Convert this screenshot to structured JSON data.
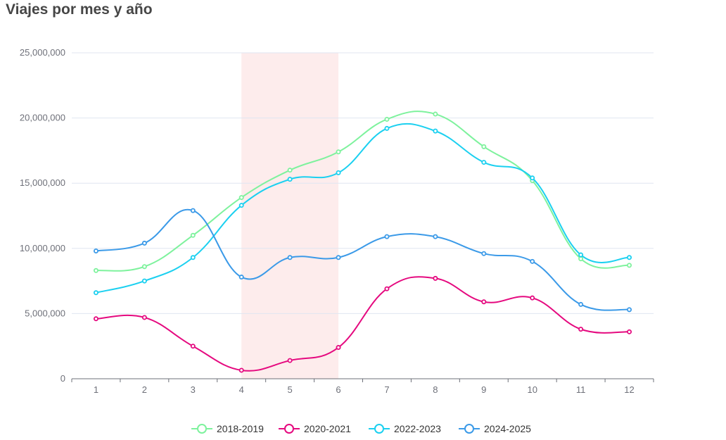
{
  "chart_data": {
    "type": "line",
    "title": "Viajes por mes y año",
    "xlabel": "",
    "ylabel": "",
    "categories": [
      "1",
      "2",
      "3",
      "4",
      "5",
      "6",
      "7",
      "8",
      "9",
      "10",
      "11",
      "12"
    ],
    "ylim": [
      0,
      25000000
    ],
    "yticks": [
      0,
      5000000,
      10000000,
      15000000,
      20000000,
      25000000
    ],
    "ytick_labels": [
      "0",
      "5,000,000",
      "10,000,000",
      "15,000,000",
      "20,000,000",
      "25,000,000"
    ],
    "grid": true,
    "legend_position": "bottom-center",
    "highlight_band": {
      "from": "4",
      "to": "6",
      "color": "#fdecec"
    },
    "series": [
      {
        "name": "2018-2019",
        "color": "#7ef29d",
        "values": [
          8300000,
          8600000,
          11000000,
          13900000,
          16000000,
          17400000,
          19900000,
          20300000,
          17800000,
          15200000,
          9200000,
          8700000
        ]
      },
      {
        "name": "2020-2021",
        "color": "#e5097f",
        "values": [
          4600000,
          4700000,
          2500000,
          650000,
          1400000,
          2400000,
          6900000,
          7700000,
          5900000,
          6200000,
          3800000,
          3600000
        ]
      },
      {
        "name": "2022-2023",
        "color": "#1bd0f0",
        "values": [
          6600000,
          7500000,
          9300000,
          13300000,
          15300000,
          15800000,
          19200000,
          19000000,
          16600000,
          15400000,
          9500000,
          9300000
        ]
      },
      {
        "name": "2024-2025",
        "color": "#3b9ae8",
        "values": [
          9800000,
          10400000,
          12900000,
          7800000,
          9300000,
          9300000,
          10900000,
          10900000,
          9600000,
          9000000,
          5700000,
          5300000
        ]
      }
    ]
  }
}
